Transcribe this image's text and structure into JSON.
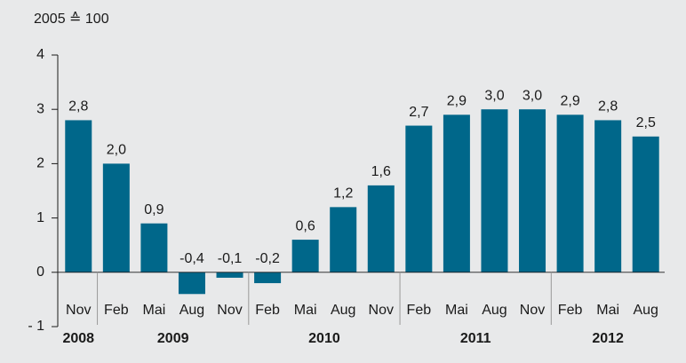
{
  "chart_data": {
    "type": "bar",
    "y_unit_label": "2005 ≙ 100",
    "categories": [
      "Nov",
      "Feb",
      "Mai",
      "Aug",
      "Nov",
      "Feb",
      "Mai",
      "Aug",
      "Nov",
      "Feb",
      "Mai",
      "Aug",
      "Nov",
      "Feb",
      "Mai",
      "Aug"
    ],
    "values": [
      2.8,
      2.0,
      0.9,
      -0.4,
      -0.1,
      -0.2,
      0.6,
      1.2,
      1.6,
      2.7,
      2.9,
      3.0,
      3.0,
      2.9,
      2.8,
      2.5
    ],
    "value_labels": [
      "2,8",
      "2,0",
      "0,9",
      "-0,4",
      "-0,1",
      "-0,2",
      "0,6",
      "1,2",
      "1,6",
      "2,7",
      "2,9",
      "3,0",
      "3,0",
      "2,9",
      "2,8",
      "2,5"
    ],
    "groups": [
      {
        "label": "2008",
        "span": 1
      },
      {
        "label": "2009",
        "span": 4
      },
      {
        "label": "2010",
        "span": 4
      },
      {
        "label": "2011",
        "span": 4
      },
      {
        "label": "2012",
        "span": 3
      }
    ],
    "color": "#00678a",
    "ylim": [
      -1,
      4
    ],
    "yticks": [
      {
        "value": -1,
        "label": "- 1"
      },
      0,
      1,
      2,
      3,
      4
    ]
  }
}
